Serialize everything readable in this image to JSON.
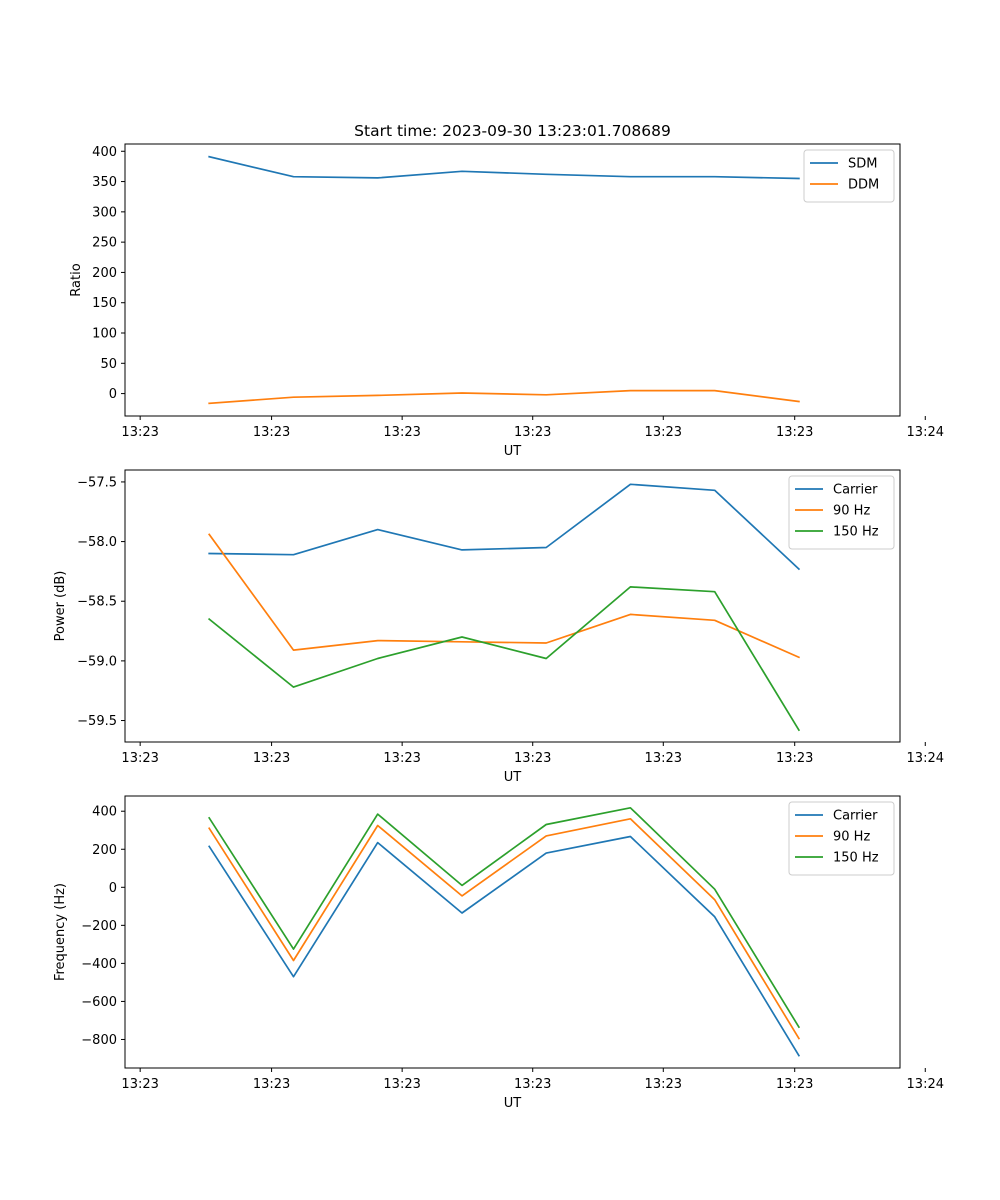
{
  "chart_data": [
    {
      "type": "line",
      "title": "Start time: 2023-09-30 13:23:01.708689",
      "xlabel": "UT",
      "ylabel": "Ratio",
      "xlim": [
        -1,
        8.2
      ],
      "ylim": [
        -37,
        412
      ],
      "yticks": [
        0,
        50,
        100,
        150,
        200,
        250,
        300,
        350,
        400
      ],
      "ytick_labels": [
        "0",
        "50",
        "100",
        "150",
        "200",
        "250",
        "300",
        "350",
        "400"
      ],
      "xticks": [
        -0.82,
        0.74,
        2.29,
        3.84,
        5.39,
        6.95,
        8.5
      ],
      "xtick_labels": [
        "13:23",
        "13:23",
        "13:23",
        "13:23",
        "13:23",
        "13:23",
        "13:24"
      ],
      "legend": "top-right",
      "x": [
        0,
        1,
        2,
        3,
        4,
        5,
        6,
        7
      ],
      "series": [
        {
          "name": "SDM",
          "color": "#1f77b4",
          "values": [
            391,
            358,
            356,
            367,
            362,
            358,
            358,
            355
          ]
        },
        {
          "name": "DDM",
          "color": "#ff7f0e",
          "values": [
            -16,
            -6,
            -3,
            1,
            -2,
            5,
            5,
            -13
          ]
        }
      ]
    },
    {
      "type": "line",
      "title": "",
      "xlabel": "UT",
      "ylabel": "Power (dB)",
      "xlim": [
        -1,
        8.2
      ],
      "ylim": [
        -59.68,
        -57.4
      ],
      "yticks": [
        -59.5,
        -59.0,
        -58.5,
        -58.0,
        -57.5
      ],
      "ytick_labels": [
        "−59.5",
        "−59.0",
        "−58.5",
        "−58.0",
        "−57.5"
      ],
      "xticks": [
        -0.82,
        0.74,
        2.29,
        3.84,
        5.39,
        6.95,
        8.5
      ],
      "xtick_labels": [
        "13:23",
        "13:23",
        "13:23",
        "13:23",
        "13:23",
        "13:23",
        "13:24"
      ],
      "legend": "top-right",
      "x": [
        0,
        1,
        2,
        3,
        4,
        5,
        6,
        7
      ],
      "series": [
        {
          "name": "Carrier",
          "color": "#1f77b4",
          "values": [
            -58.1,
            -58.11,
            -57.9,
            -58.07,
            -58.05,
            -57.52,
            -57.57,
            -58.23
          ]
        },
        {
          "name": "90 Hz",
          "color": "#ff7f0e",
          "values": [
            -57.94,
            -58.91,
            -58.83,
            -58.84,
            -58.85,
            -58.61,
            -58.66,
            -58.97
          ]
        },
        {
          "name": "150 Hz",
          "color": "#2ca02c",
          "values": [
            -58.65,
            -59.22,
            -58.98,
            -58.8,
            -58.98,
            -58.38,
            -58.42,
            -59.58
          ]
        }
      ]
    },
    {
      "type": "line",
      "title": "",
      "xlabel": "UT",
      "ylabel": "Frequency (Hz)",
      "xlim": [
        -1,
        8.2
      ],
      "ylim": [
        -950,
        480
      ],
      "yticks": [
        -800,
        -600,
        -400,
        -200,
        0,
        200,
        400
      ],
      "ytick_labels": [
        "−800",
        "−600",
        "−400",
        "−200",
        "0",
        "200",
        "400"
      ],
      "xticks": [
        -0.82,
        0.74,
        2.29,
        3.84,
        5.39,
        6.95,
        8.5
      ],
      "xtick_labels": [
        "13:23",
        "13:23",
        "13:23",
        "13:23",
        "13:23",
        "13:23",
        "13:24"
      ],
      "legend": "top-right",
      "x": [
        0,
        1,
        2,
        3,
        4,
        5,
        6,
        7
      ],
      "series": [
        {
          "name": "Carrier",
          "color": "#1f77b4",
          "values": [
            215,
            -470,
            235,
            -135,
            180,
            267,
            -155,
            -885
          ]
        },
        {
          "name": "90 Hz",
          "color": "#ff7f0e",
          "values": [
            310,
            -385,
            325,
            -45,
            270,
            360,
            -65,
            -795
          ]
        },
        {
          "name": "150 Hz",
          "color": "#2ca02c",
          "values": [
            365,
            -325,
            385,
            10,
            330,
            418,
            -10,
            -735
          ]
        }
      ]
    }
  ]
}
